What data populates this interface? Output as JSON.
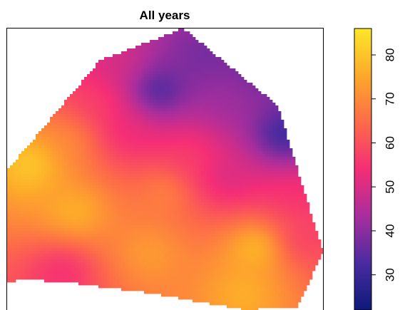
{
  "chart_data": {
    "type": "heatmap",
    "title": "All years",
    "xlabel": "",
    "ylabel": "",
    "colorbar": {
      "range": [
        22,
        86
      ],
      "ticks": [
        30,
        40,
        50,
        60,
        70,
        80
      ],
      "tick_labels": [
        "30",
        "40",
        "50",
        "60",
        "70",
        "80"
      ],
      "palette": [
        "#0d1a7a",
        "#4a2ba0",
        "#a82e9d",
        "#f52e76",
        "#fd6b49",
        "#fda92a",
        "#fde729"
      ],
      "placement": "right"
    },
    "grid": false,
    "region_outline": [
      [
        0.3,
        9.8
      ],
      [
        5.6,
        11.0
      ],
      [
        21.5,
        9.5
      ],
      [
        45.2,
        6.0
      ],
      [
        75.7,
        0
      ],
      [
        92.0,
        1.0
      ],
      [
        100,
        20.7
      ],
      [
        85.7,
        72.6
      ],
      [
        55.8,
        100
      ],
      [
        29.4,
        88.7
      ],
      [
        0,
        49.6
      ]
    ],
    "surface_features": [
      {
        "x": 8.0,
        "y": 52.1,
        "value": 85
      },
      {
        "x": 45.2,
        "y": 20.8,
        "value": 75
      },
      {
        "x": 79.4,
        "y": 22.6,
        "value": 85
      },
      {
        "x": 47.6,
        "y": 77.7,
        "value": 24
      },
      {
        "x": 87.0,
        "y": 62.0,
        "value": 25
      },
      {
        "x": 70.0,
        "y": 74.0,
        "value": 42
      },
      {
        "x": 69.0,
        "y": 47.0,
        "value": 48
      },
      {
        "x": 90.0,
        "y": 40.0,
        "value": 55
      },
      {
        "x": 38.0,
        "y": 63.0,
        "value": 52
      },
      {
        "x": 29.0,
        "y": 74.0,
        "value": 58
      },
      {
        "x": 18.0,
        "y": 14.0,
        "value": 52
      },
      {
        "x": 50.0,
        "y": 42.0,
        "value": 72
      },
      {
        "x": 22.0,
        "y": 35.0,
        "value": 80
      },
      {
        "x": 75.0,
        "y": 6.0,
        "value": 78
      },
      {
        "x": 92.0,
        "y": 25.0,
        "value": 55
      },
      {
        "x": 58.0,
        "y": 55.0,
        "value": 58
      },
      {
        "x": 20.0,
        "y": 60.0,
        "value": 72
      },
      {
        "x": 62.0,
        "y": 90.0,
        "value": 36
      },
      {
        "x": 80.0,
        "y": 88.0,
        "value": 33
      },
      {
        "x": 36.0,
        "y": 88.0,
        "value": 50
      }
    ],
    "surface_smoothing": 8,
    "surface_falloff": 2.5
  }
}
